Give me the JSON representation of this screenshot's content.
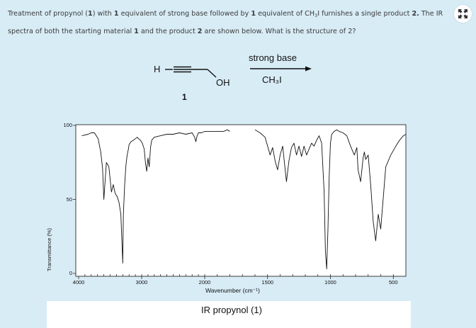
{
  "question": {
    "part1": "Treatment of propynol (",
    "b1": "1",
    "part2": ") with ",
    "b2": "1",
    "part3": " equivalent of strong base followed by ",
    "b3": "1",
    "part4": " equivalent of CH",
    "sub": "3",
    "part5": "I furnishes a single product ",
    "b4": "2.",
    "part6": " The IR spectra of both the starting material ",
    "b5": "1",
    "part7": " and the product ",
    "b6": "2",
    "part8": " are shown below. What is the structure of 2?"
  },
  "reaction": {
    "h_label": "H",
    "oh_label": "OH",
    "compound_number": "1",
    "reagent_top": "strong base",
    "reagent_bottom": "CH₃I"
  },
  "chart_data": {
    "type": "line",
    "title": "IR propynol (1)",
    "xlabel": "Wavenumber (cm⁻¹)",
    "ylabel": "Transmittance (%)",
    "xlim": [
      4000,
      400
    ],
    "ylim": [
      0,
      100
    ],
    "x_reversed": true,
    "x_ticks": [
      4000,
      3000,
      2000,
      1500,
      1000,
      500
    ],
    "y_ticks": [
      0,
      50,
      100
    ],
    "grid": false,
    "series": [
      {
        "x": [
          3950,
          3850,
          3800,
          3750,
          3690,
          3650,
          3620,
          3600,
          3560,
          3520,
          3480,
          3450,
          3420,
          3390,
          3360,
          3330,
          3300,
          3290,
          3270,
          3250,
          3230,
          3210,
          3200,
          3170,
          3130,
          3100,
          3070,
          3050,
          3020,
          2990,
          2960,
          2940,
          2920,
          2900,
          2880,
          2860,
          2840,
          2800,
          2700,
          2600,
          2500,
          2400,
          2300,
          2200,
          2160,
          2140,
          2120,
          2100,
          2050,
          2000,
          1950,
          1900,
          1850,
          1820,
          1800
        ],
        "y": [
          93,
          94,
          95,
          95,
          91,
          82,
          71,
          50,
          75,
          72,
          55,
          60,
          54,
          52,
          48,
          40,
          7,
          40,
          60,
          73,
          80,
          84,
          87,
          89,
          90,
          91,
          92,
          91,
          90,
          88,
          84,
          75,
          69,
          78,
          72,
          85,
          90,
          92,
          93,
          94,
          94,
          95,
          94,
          95,
          92,
          89,
          93,
          95,
          95,
          96,
          96,
          96,
          96,
          97,
          96
        ]
      },
      {
        "x": [
          1600,
          1560,
          1520,
          1500,
          1480,
          1460,
          1440,
          1420,
          1400,
          1380,
          1360,
          1350,
          1330,
          1310,
          1290,
          1270,
          1250,
          1230,
          1210,
          1190,
          1170,
          1150,
          1130,
          1110,
          1090,
          1070,
          1050,
          1040,
          1030,
          1020,
          1010,
          1000,
          990,
          970,
          950,
          930,
          900,
          870,
          840,
          810,
          790,
          780,
          760,
          750,
          740,
          730,
          720,
          700,
          680,
          660,
          640,
          620,
          600,
          560,
          520,
          480,
          450,
          420,
          400
        ],
        "y": [
          97,
          95,
          92,
          86,
          80,
          85,
          76,
          70,
          80,
          86,
          70,
          62,
          76,
          85,
          88,
          80,
          86,
          79,
          86,
          80,
          84,
          88,
          86,
          90,
          93,
          88,
          55,
          15,
          3,
          30,
          65,
          88,
          94,
          96,
          97,
          96,
          95,
          93,
          86,
          80,
          85,
          70,
          62,
          70,
          78,
          82,
          77,
          80,
          60,
          35,
          22,
          40,
          30,
          72,
          80,
          86,
          90,
          93,
          94
        ]
      }
    ]
  }
}
